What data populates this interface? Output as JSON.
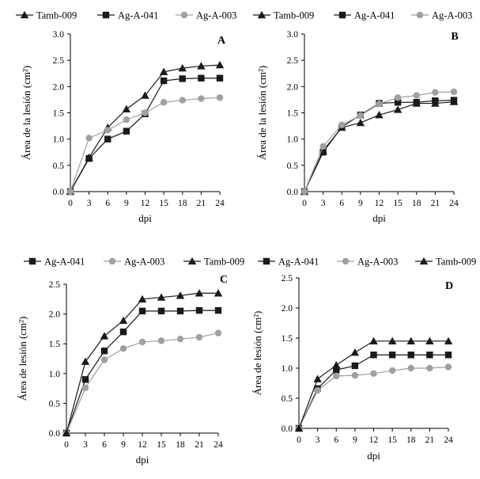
{
  "figure": {
    "colors": {
      "Tamb-009": "#1a1a1a",
      "Ag-A-041": "#1a1a1a",
      "Ag-A-003": "#a0a0a0",
      "axis": "#000000"
    },
    "markers": {
      "Tamb-009": "triangle",
      "Ag-A-041": "square",
      "Ag-A-003": "circle"
    }
  },
  "chart_data": [
    {
      "type": "line",
      "panel": "A",
      "title": "",
      "xlabel": "dpi",
      "ylabel": "Área de la lesión (cm²)",
      "x": [
        0,
        3,
        6,
        9,
        12,
        15,
        18,
        21,
        24
      ],
      "xticks": [
        "0",
        "3",
        "6",
        "9",
        "12",
        "15",
        "18",
        "21",
        "24"
      ],
      "ylim": [
        0,
        3.0
      ],
      "yticks": [
        "0.0",
        "0.5",
        "1.0",
        "1.5",
        "2.0",
        "2.5",
        "3.0"
      ],
      "legend_order": [
        "Tamb-009",
        "Ag-A-041",
        "Ag-A-003"
      ],
      "series": [
        {
          "name": "Tamb-009",
          "values": [
            0,
            0.65,
            1.22,
            1.57,
            1.83,
            2.28,
            2.35,
            2.39,
            2.41
          ]
        },
        {
          "name": "Ag-A-041",
          "values": [
            0,
            0.63,
            1.0,
            1.15,
            1.48,
            2.11,
            2.15,
            2.16,
            2.16
          ]
        },
        {
          "name": "Ag-A-003",
          "values": [
            0,
            1.02,
            1.17,
            1.37,
            1.5,
            1.7,
            1.74,
            1.77,
            1.79
          ]
        }
      ]
    },
    {
      "type": "line",
      "panel": "B",
      "title": "",
      "xlabel": "dpi",
      "ylabel": "Área de la lesión (cm²)",
      "x": [
        0,
        3,
        6,
        9,
        12,
        15,
        18,
        21,
        24
      ],
      "xticks": [
        "0",
        "3",
        "6",
        "9",
        "12",
        "15",
        "18",
        "21",
        "24"
      ],
      "ylim": [
        0,
        3.0
      ],
      "yticks": [
        "0.0",
        "0.5",
        "1.0",
        "1.5",
        "2.0",
        "2.5",
        "3.0"
      ],
      "legend_order": [
        "Tamb-009",
        "Ag-A-041",
        "Ag-A-003"
      ],
      "series": [
        {
          "name": "Tamb-009",
          "values": [
            0,
            0.78,
            1.22,
            1.31,
            1.46,
            1.56,
            1.68,
            1.68,
            1.71
          ]
        },
        {
          "name": "Ag-A-041",
          "values": [
            0,
            0.75,
            1.23,
            1.46,
            1.68,
            1.7,
            1.7,
            1.73,
            1.74
          ]
        },
        {
          "name": "Ag-A-003",
          "values": [
            0,
            0.86,
            1.27,
            1.45,
            1.67,
            1.79,
            1.83,
            1.89,
            1.9
          ]
        }
      ]
    },
    {
      "type": "line",
      "panel": "C",
      "title": "",
      "xlabel": "dpi",
      "ylabel": "Área de lesión (cm²)",
      "x": [
        0,
        3,
        6,
        9,
        12,
        15,
        18,
        21,
        24
      ],
      "xticks": [
        "0",
        "3",
        "6",
        "9",
        "12",
        "15",
        "18",
        "21",
        "24"
      ],
      "ylim": [
        0,
        2.5
      ],
      "yticks": [
        "0.0",
        "0.5",
        "1.0",
        "1.5",
        "2.0",
        "2.5"
      ],
      "legend_order": [
        "Ag-A-041",
        "Ag-A-003",
        "Tamb-009"
      ],
      "series": [
        {
          "name": "Ag-A-041",
          "values": [
            0,
            0.9,
            1.38,
            1.7,
            2.05,
            2.05,
            2.05,
            2.06,
            2.06
          ]
        },
        {
          "name": "Ag-A-003",
          "values": [
            0,
            0.76,
            1.23,
            1.42,
            1.53,
            1.55,
            1.58,
            1.61,
            1.68
          ]
        },
        {
          "name": "Tamb-009",
          "values": [
            0,
            1.2,
            1.63,
            1.89,
            2.25,
            2.28,
            2.31,
            2.35,
            2.35
          ]
        }
      ]
    },
    {
      "type": "line",
      "panel": "D",
      "title": "",
      "xlabel": "dpi",
      "ylabel": "Área de lesión (cm²)",
      "x": [
        0,
        3,
        6,
        9,
        12,
        15,
        18,
        21,
        24
      ],
      "xticks": [
        "0",
        "3",
        "6",
        "9",
        "12",
        "15",
        "18",
        "21",
        "24"
      ],
      "ylim": [
        0,
        2.5
      ],
      "yticks": [
        "0.0",
        "0.5",
        "1.0",
        "1.5",
        "2.0",
        "2.5"
      ],
      "legend_order": [
        "Ag-A-041",
        "Ag-A-003",
        "Tamb-009"
      ],
      "series": [
        {
          "name": "Ag-A-041",
          "values": [
            0,
            0.66,
            0.97,
            1.04,
            1.22,
            1.22,
            1.22,
            1.22,
            1.22
          ]
        },
        {
          "name": "Ag-A-003",
          "values": [
            0,
            0.63,
            0.87,
            0.88,
            0.91,
            0.96,
            1.0,
            1.0,
            1.02
          ]
        },
        {
          "name": "Tamb-009",
          "values": [
            0,
            0.82,
            1.05,
            1.26,
            1.45,
            1.45,
            1.45,
            1.45,
            1.45
          ]
        }
      ]
    }
  ]
}
